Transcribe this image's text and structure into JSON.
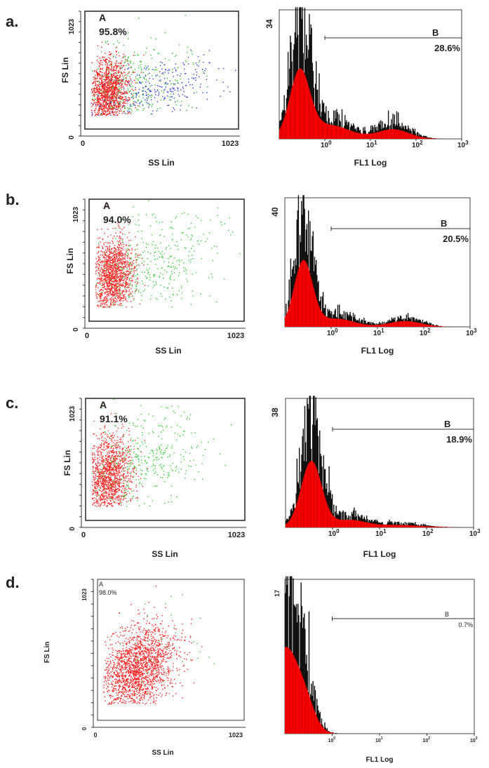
{
  "figure": {
    "panels": [
      {
        "label": "a."
      },
      {
        "label": "b."
      },
      {
        "label": "c."
      },
      {
        "label": "d."
      }
    ]
  },
  "chart_data": [
    {
      "panel": "a.",
      "type": "scatter",
      "xlabel": "SS Lin",
      "ylabel": "FS Lin",
      "xlim": [
        0,
        1023
      ],
      "ylim": [
        0,
        1023
      ],
      "xticks": [
        "0",
        "1023"
      ],
      "yticks": [
        "0",
        "1023"
      ],
      "gate": {
        "name": "A",
        "percent": "95.8%"
      },
      "series": [
        {
          "name": "red",
          "color": "#ff1a1a",
          "n": 1400,
          "center": [
            150,
            320
          ],
          "spread": [
            70,
            150
          ]
        },
        {
          "name": "green",
          "color": "#2fc52f",
          "n": 320,
          "center": [
            330,
            400
          ],
          "spread": [
            180,
            200
          ]
        },
        {
          "name": "blue",
          "color": "#2a3bdc",
          "n": 300,
          "center": [
            480,
            330
          ],
          "spread": [
            210,
            130
          ]
        }
      ]
    },
    {
      "panel": "a.",
      "type": "histogram",
      "xlabel": "FL1 Log",
      "xscale": "log",
      "xlim": [
        0.1,
        1000
      ],
      "xticks": [
        "10^0",
        "10^1",
        "10^2",
        "10^3"
      ],
      "ymax": 34,
      "yticks": [
        "34"
      ],
      "gate": {
        "name": "B",
        "percent": "28.6%",
        "range": [
          1,
          1000
        ]
      },
      "components": [
        {
          "mu": -0.55,
          "sigma": 0.22,
          "amp": 24
        },
        {
          "mu": 0.1,
          "sigma": 0.45,
          "amp": 5
        },
        {
          "mu": 1.5,
          "sigma": 0.35,
          "amp": 3.5
        }
      ]
    },
    {
      "panel": "b.",
      "type": "scatter",
      "xlabel": "SS Lin",
      "ylabel": "FS Lin",
      "xlim": [
        0,
        1023
      ],
      "ylim": [
        0,
        1023
      ],
      "xticks": [
        "0",
        "1023"
      ],
      "yticks": [
        "0",
        "1023"
      ],
      "gate": {
        "name": "A",
        "percent": "94.0%"
      },
      "series": [
        {
          "name": "red",
          "color": "#ff2a2a",
          "n": 1500,
          "center": [
            150,
            380
          ],
          "spread": [
            70,
            150
          ]
        },
        {
          "name": "green",
          "color": "#33cc33",
          "n": 420,
          "center": [
            420,
            450
          ],
          "spread": [
            230,
            230
          ]
        }
      ]
    },
    {
      "panel": "b.",
      "type": "histogram",
      "xlabel": "FL1 Log",
      "xscale": "log",
      "xlim": [
        0.1,
        1000
      ],
      "xticks": [
        "10^0",
        "10^1",
        "10^2",
        "10^3"
      ],
      "ymax": 40,
      "yticks": [
        "40"
      ],
      "gate": {
        "name": "B",
        "percent": "20.5%",
        "range": [
          1,
          1000
        ]
      },
      "components": [
        {
          "mu": -0.6,
          "sigma": 0.2,
          "amp": 28
        },
        {
          "mu": 0.1,
          "sigma": 0.4,
          "amp": 3.5
        },
        {
          "mu": 1.6,
          "sigma": 0.35,
          "amp": 2.5
        }
      ]
    },
    {
      "panel": "c.",
      "type": "scatter",
      "xlabel": "SS Lin",
      "ylabel": "FS Lin",
      "xlim": [
        0,
        1023
      ],
      "ylim": [
        0,
        1023
      ],
      "xticks": [
        "0",
        "1023"
      ],
      "yticks": [
        "0",
        "1023"
      ],
      "gate": {
        "name": "A",
        "percent": "91.1%"
      },
      "series": [
        {
          "name": "red",
          "color": "#ff2a2a",
          "n": 1500,
          "center": [
            140,
            360
          ],
          "spread": [
            75,
            170
          ]
        },
        {
          "name": "green",
          "color": "#33cc33",
          "n": 380,
          "center": [
            380,
            520
          ],
          "spread": [
            190,
            210
          ]
        }
      ]
    },
    {
      "panel": "c.",
      "type": "histogram",
      "xlabel": "FL1 Log",
      "xscale": "log",
      "xlim": [
        0.1,
        1000
      ],
      "xticks": [
        "10^0",
        "10^1",
        "10^2",
        "10^3"
      ],
      "ymax": 38,
      "yticks": [
        "38"
      ],
      "gate": {
        "name": "B",
        "percent": "18.9%",
        "range": [
          1,
          1000
        ]
      },
      "components": [
        {
          "mu": -0.45,
          "sigma": 0.22,
          "amp": 27
        },
        {
          "mu": 0.35,
          "sigma": 0.35,
          "amp": 3
        },
        {
          "mu": 1.4,
          "sigma": 0.5,
          "amp": 1
        }
      ]
    },
    {
      "panel": "d.",
      "type": "scatter",
      "xlabel": "SS Lin",
      "ylabel": "FS Lin",
      "xlim": [
        0,
        1023
      ],
      "ylim": [
        0,
        1023
      ],
      "xticks": [
        "0",
        "1023"
      ],
      "yticks": [
        "0",
        "1023"
      ],
      "gate": {
        "name": "A",
        "percent": "98.0%"
      },
      "series": [
        {
          "name": "red",
          "color": "#ff2424",
          "n": 2000,
          "center": [
            280,
            380
          ],
          "spread": [
            130,
            150
          ]
        },
        {
          "name": "green",
          "color": "#44bb44",
          "n": 40,
          "center": [
            450,
            500
          ],
          "spread": [
            200,
            200
          ]
        }
      ]
    },
    {
      "panel": "d.",
      "type": "histogram",
      "xlabel": "FL1 Log",
      "xscale": "log",
      "xlim": [
        0.1,
        1000
      ],
      "xticks": [
        "10^0",
        "10^1",
        "10^2",
        "10^3"
      ],
      "ymax": 17,
      "yticks": [
        "17"
      ],
      "gate": {
        "name": "B",
        "percent": "0.7%",
        "range": [
          1,
          1000
        ]
      },
      "components": [
        {
          "mu": -1.0,
          "sigma": 0.3,
          "amp": 13
        },
        {
          "mu": -0.55,
          "sigma": 0.2,
          "amp": 3
        }
      ]
    }
  ]
}
